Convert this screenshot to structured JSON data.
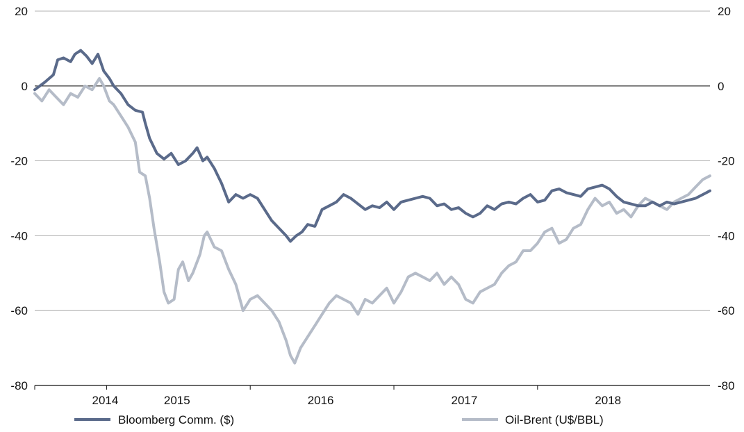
{
  "chart_data": {
    "type": "line",
    "title": "",
    "xlabel": "",
    "ylabel": "",
    "ylim": [
      -80,
      20
    ],
    "yticks": [
      20,
      0,
      -20,
      -40,
      -60,
      -80
    ],
    "ytick_labels": [
      "20",
      "0",
      "-20",
      "-40",
      "-60",
      "-80"
    ],
    "y2ticks": [
      20,
      0,
      -20,
      -40,
      -60,
      -80
    ],
    "y2tick_labels": [
      "20",
      "0",
      "-20",
      "-40",
      "-60",
      "-80"
    ],
    "xlim": [
      2013.9,
      2018.6
    ],
    "x_boundaries": [
      2014.4,
      2015.4,
      2016.4,
      2017.4
    ],
    "x_labels": [
      {
        "label": "2014",
        "x": 2014.4
      },
      {
        "label": "2015",
        "x": 2014.9
      },
      {
        "label": "2016",
        "x": 2015.9
      },
      {
        "label": "2017",
        "x": 2016.9
      },
      {
        "label": "2018",
        "x": 2017.9
      }
    ],
    "grid": true,
    "legend_position": "bottom",
    "series": [
      {
        "name": "Bloomberg Comm. ($)",
        "color": "#5a6a8a",
        "points": [
          [
            2013.9,
            -1
          ],
          [
            2013.97,
            1
          ],
          [
            2014.03,
            3
          ],
          [
            2014.06,
            7
          ],
          [
            2014.1,
            7.5
          ],
          [
            2014.15,
            6.5
          ],
          [
            2014.18,
            8.5
          ],
          [
            2014.22,
            9.5
          ],
          [
            2014.26,
            8
          ],
          [
            2014.3,
            6
          ],
          [
            2014.34,
            8.5
          ],
          [
            2014.38,
            4
          ],
          [
            2014.42,
            2
          ],
          [
            2014.45,
            0
          ],
          [
            2014.5,
            -2
          ],
          [
            2014.55,
            -5
          ],
          [
            2014.6,
            -6.5
          ],
          [
            2014.65,
            -7
          ],
          [
            2014.67,
            -10
          ],
          [
            2014.7,
            -14
          ],
          [
            2014.75,
            -18
          ],
          [
            2014.8,
            -19.5
          ],
          [
            2014.85,
            -18
          ],
          [
            2014.9,
            -21
          ],
          [
            2014.95,
            -20
          ],
          [
            2015,
            -18
          ],
          [
            2015.03,
            -16.5
          ],
          [
            2015.07,
            -20
          ],
          [
            2015.1,
            -19
          ],
          [
            2015.15,
            -22
          ],
          [
            2015.2,
            -26
          ],
          [
            2015.25,
            -31
          ],
          [
            2015.3,
            -29
          ],
          [
            2015.35,
            -30
          ],
          [
            2015.4,
            -29
          ],
          [
            2015.45,
            -30
          ],
          [
            2015.5,
            -33
          ],
          [
            2015.55,
            -36
          ],
          [
            2015.6,
            -38
          ],
          [
            2015.65,
            -40
          ],
          [
            2015.68,
            -41.5
          ],
          [
            2015.72,
            -40
          ],
          [
            2015.76,
            -39
          ],
          [
            2015.8,
            -37
          ],
          [
            2015.85,
            -37.5
          ],
          [
            2015.9,
            -33
          ],
          [
            2015.95,
            -32
          ],
          [
            2016,
            -31
          ],
          [
            2016.05,
            -29
          ],
          [
            2016.1,
            -30
          ],
          [
            2016.15,
            -31.5
          ],
          [
            2016.2,
            -33
          ],
          [
            2016.25,
            -32
          ],
          [
            2016.3,
            -32.5
          ],
          [
            2016.35,
            -31
          ],
          [
            2016.4,
            -33
          ],
          [
            2016.45,
            -31
          ],
          [
            2016.5,
            -30.5
          ],
          [
            2016.55,
            -30
          ],
          [
            2016.6,
            -29.5
          ],
          [
            2016.65,
            -30
          ],
          [
            2016.7,
            -32
          ],
          [
            2016.75,
            -31.5
          ],
          [
            2016.8,
            -33
          ],
          [
            2016.85,
            -32.5
          ],
          [
            2016.9,
            -34
          ],
          [
            2016.95,
            -35
          ],
          [
            2017,
            -34
          ],
          [
            2017.05,
            -32
          ],
          [
            2017.1,
            -33
          ],
          [
            2017.15,
            -31.5
          ],
          [
            2017.2,
            -31
          ],
          [
            2017.25,
            -31.5
          ],
          [
            2017.3,
            -30
          ],
          [
            2017.35,
            -29
          ],
          [
            2017.4,
            -31
          ],
          [
            2017.45,
            -30.5
          ],
          [
            2017.5,
            -28
          ],
          [
            2017.55,
            -27.5
          ],
          [
            2017.6,
            -28.5
          ],
          [
            2017.65,
            -29
          ],
          [
            2017.7,
            -29.5
          ],
          [
            2017.75,
            -27.5
          ],
          [
            2017.8,
            -27
          ],
          [
            2017.85,
            -26.5
          ],
          [
            2017.9,
            -27.5
          ],
          [
            2017.95,
            -29.5
          ],
          [
            2018,
            -31
          ],
          [
            2018.05,
            -31.5
          ],
          [
            2018.1,
            -32
          ],
          [
            2018.15,
            -32
          ],
          [
            2018.2,
            -31
          ],
          [
            2018.25,
            -32
          ],
          [
            2018.3,
            -31
          ],
          [
            2018.35,
            -31.5
          ],
          [
            2018.4,
            -31
          ],
          [
            2018.45,
            -30.5
          ],
          [
            2018.5,
            -30
          ],
          [
            2018.55,
            -29
          ],
          [
            2018.6,
            -28
          ]
        ]
      },
      {
        "name": "Oil-Brent (U$/BBL)",
        "color": "#b5bcc8",
        "points": [
          [
            2013.9,
            -2
          ],
          [
            2013.95,
            -4
          ],
          [
            2014,
            -1
          ],
          [
            2014.05,
            -3
          ],
          [
            2014.1,
            -5
          ],
          [
            2014.15,
            -2
          ],
          [
            2014.2,
            -3
          ],
          [
            2014.25,
            0
          ],
          [
            2014.3,
            -1
          ],
          [
            2014.35,
            2
          ],
          [
            2014.38,
            0
          ],
          [
            2014.42,
            -4
          ],
          [
            2014.45,
            -5
          ],
          [
            2014.5,
            -8
          ],
          [
            2014.55,
            -11
          ],
          [
            2014.6,
            -15
          ],
          [
            2014.63,
            -23
          ],
          [
            2014.67,
            -24
          ],
          [
            2014.7,
            -30
          ],
          [
            2014.73,
            -38
          ],
          [
            2014.77,
            -47
          ],
          [
            2014.8,
            -55
          ],
          [
            2014.83,
            -58
          ],
          [
            2014.87,
            -57
          ],
          [
            2014.9,
            -49
          ],
          [
            2014.93,
            -47
          ],
          [
            2014.97,
            -52
          ],
          [
            2015,
            -50
          ],
          [
            2015.05,
            -45
          ],
          [
            2015.08,
            -40
          ],
          [
            2015.1,
            -39
          ],
          [
            2015.15,
            -43
          ],
          [
            2015.2,
            -44
          ],
          [
            2015.25,
            -49
          ],
          [
            2015.3,
            -53
          ],
          [
            2015.35,
            -60
          ],
          [
            2015.4,
            -57
          ],
          [
            2015.45,
            -56
          ],
          [
            2015.5,
            -58
          ],
          [
            2015.55,
            -60
          ],
          [
            2015.6,
            -63
          ],
          [
            2015.65,
            -68
          ],
          [
            2015.68,
            -72
          ],
          [
            2015.71,
            -74
          ],
          [
            2015.75,
            -70
          ],
          [
            2015.8,
            -67
          ],
          [
            2015.85,
            -64
          ],
          [
            2015.9,
            -61
          ],
          [
            2015.95,
            -58
          ],
          [
            2016,
            -56
          ],
          [
            2016.05,
            -57
          ],
          [
            2016.1,
            -58
          ],
          [
            2016.15,
            -61
          ],
          [
            2016.2,
            -57
          ],
          [
            2016.25,
            -58
          ],
          [
            2016.3,
            -56
          ],
          [
            2016.35,
            -54
          ],
          [
            2016.4,
            -58
          ],
          [
            2016.45,
            -55
          ],
          [
            2016.5,
            -51
          ],
          [
            2016.55,
            -50
          ],
          [
            2016.6,
            -51
          ],
          [
            2016.65,
            -52
          ],
          [
            2016.7,
            -50
          ],
          [
            2016.75,
            -53
          ],
          [
            2016.8,
            -51
          ],
          [
            2016.85,
            -53
          ],
          [
            2016.9,
            -57
          ],
          [
            2016.95,
            -58
          ],
          [
            2017,
            -55
          ],
          [
            2017.05,
            -54
          ],
          [
            2017.1,
            -53
          ],
          [
            2017.15,
            -50
          ],
          [
            2017.2,
            -48
          ],
          [
            2017.25,
            -47
          ],
          [
            2017.3,
            -44
          ],
          [
            2017.35,
            -44
          ],
          [
            2017.4,
            -42
          ],
          [
            2017.45,
            -39
          ],
          [
            2017.5,
            -38
          ],
          [
            2017.55,
            -42
          ],
          [
            2017.6,
            -41
          ],
          [
            2017.65,
            -38
          ],
          [
            2017.7,
            -37
          ],
          [
            2017.75,
            -33
          ],
          [
            2017.8,
            -30
          ],
          [
            2017.85,
            -32
          ],
          [
            2017.9,
            -31
          ],
          [
            2017.95,
            -34
          ],
          [
            2018,
            -33
          ],
          [
            2018.05,
            -35
          ],
          [
            2018.1,
            -32
          ],
          [
            2018.15,
            -30
          ],
          [
            2018.2,
            -31
          ],
          [
            2018.25,
            -32
          ],
          [
            2018.3,
            -33
          ],
          [
            2018.35,
            -31
          ],
          [
            2018.4,
            -30
          ],
          [
            2018.45,
            -29
          ],
          [
            2018.5,
            -27
          ],
          [
            2018.55,
            -25
          ],
          [
            2018.6,
            -24
          ]
        ]
      }
    ]
  }
}
